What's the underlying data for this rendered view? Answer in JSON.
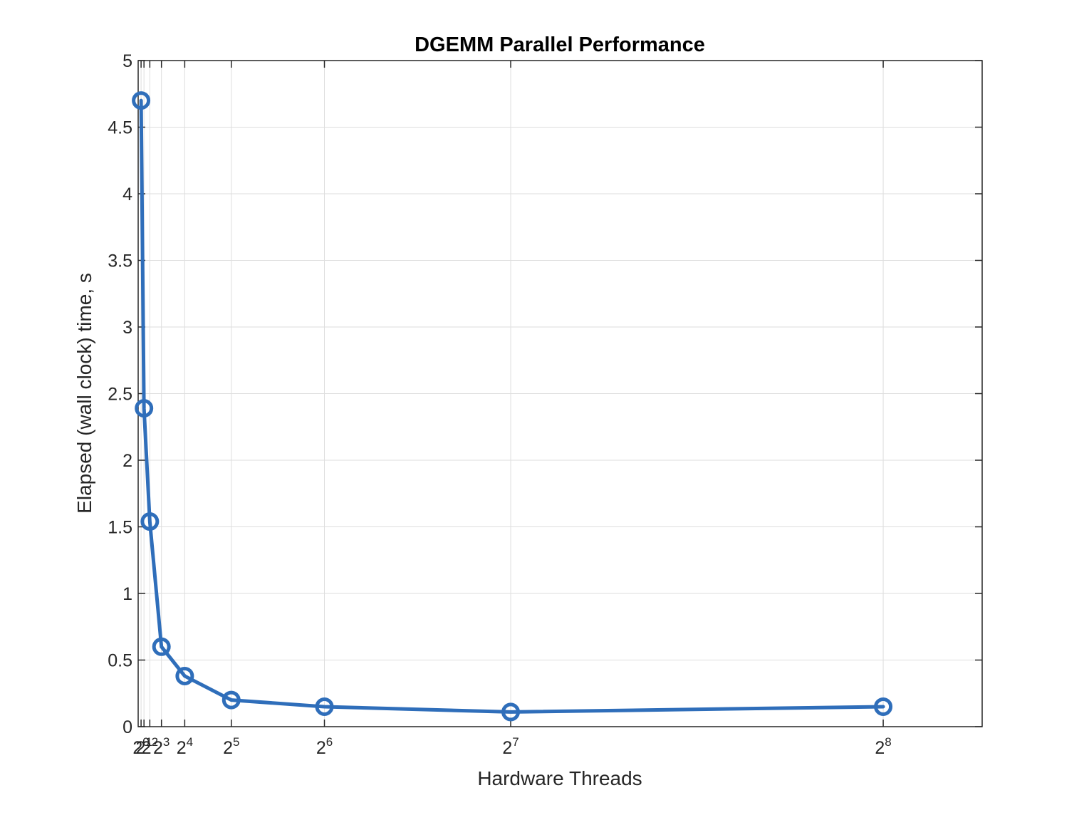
{
  "chart_data": {
    "type": "line",
    "title": "DGEMM Parallel Performance",
    "xlabel": "Hardware Threads",
    "ylabel": "Elapsed (wall clock) time, s",
    "x_scale": "linear",
    "x_ticks": [
      {
        "value": 1,
        "base": "2",
        "exp": "0"
      },
      {
        "value": 2,
        "base": "2",
        "exp": "1"
      },
      {
        "value": 4,
        "base": "2",
        "exp": "2"
      },
      {
        "value": 8,
        "base": "2",
        "exp": "3"
      },
      {
        "value": 16,
        "base": "2",
        "exp": "4"
      },
      {
        "value": 32,
        "base": "2",
        "exp": "5"
      },
      {
        "value": 64,
        "base": "2",
        "exp": "6"
      },
      {
        "value": 128,
        "base": "2",
        "exp": "7"
      },
      {
        "value": 256,
        "base": "2",
        "exp": "8"
      }
    ],
    "y_ticks": [
      "0",
      "0.5",
      "1",
      "1.5",
      "2",
      "2.5",
      "3",
      "3.5",
      "4",
      "4.5",
      "5"
    ],
    "xlim": [
      0,
      290
    ],
    "ylim": [
      0,
      5
    ],
    "grid": true,
    "legend": "none",
    "series": [
      {
        "color": "#2f6eba",
        "marker": "circle",
        "x": [
          1,
          2,
          4,
          8,
          16,
          32,
          64,
          128,
          256
        ],
        "y": [
          4.7,
          2.39,
          1.54,
          0.6,
          0.38,
          0.2,
          0.15,
          0.11,
          0.15
        ]
      }
    ]
  }
}
